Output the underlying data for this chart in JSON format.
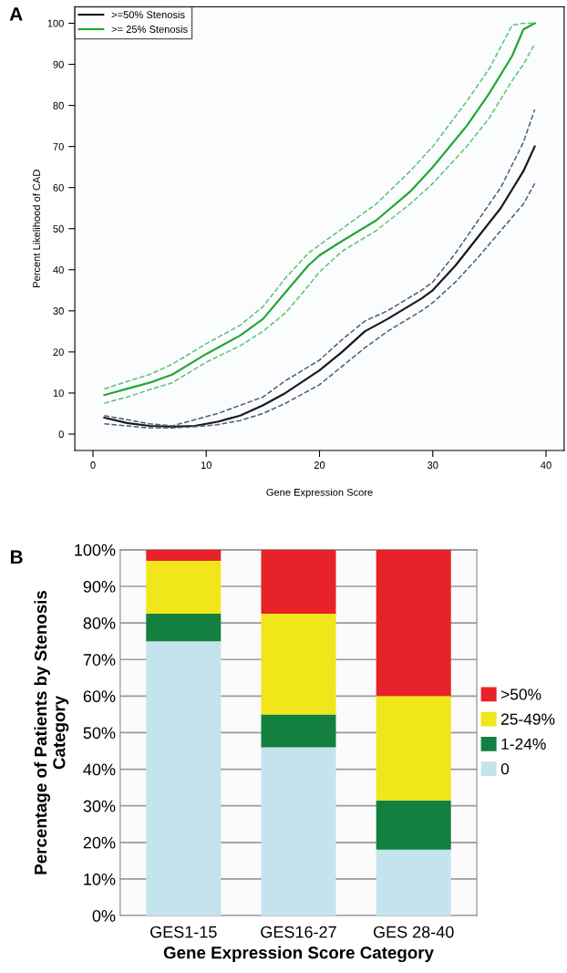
{
  "chart_data": [
    {
      "type": "line",
      "title": "A",
      "xlabel": "Gene Expression Score",
      "ylabel": "Percent Likelihood of CAD",
      "xlim": [
        -1.6,
        41.6
      ],
      "ylim": [
        -4,
        104
      ],
      "xticks": [
        0,
        10,
        20,
        30,
        40
      ],
      "yticks": [
        0,
        10,
        20,
        30,
        40,
        50,
        60,
        70,
        80,
        90,
        100
      ],
      "grid": false,
      "legend": "top left",
      "line_style": "solid",
      "marker": "none",
      "series": [
        {
          "name": ">=50% Stenosis",
          "color": "#1a1a1a",
          "x": [
            1,
            3,
            5,
            7,
            9,
            11,
            13,
            15,
            17,
            20,
            22,
            24,
            26,
            29,
            30,
            32,
            34,
            36,
            38,
            39
          ],
          "values": [
            4,
            2.7,
            2,
            1.8,
            2,
            3,
            4.5,
            7,
            10,
            15.5,
            20,
            25,
            28,
            33,
            35,
            41,
            48,
            55,
            64,
            70
          ]
        },
        {
          "name": ">= 25% Stenosis",
          "color": "#22a836",
          "x": [
            1,
            3,
            5,
            7,
            10,
            13,
            15,
            17,
            19,
            20,
            22,
            25,
            28,
            30,
            33,
            35,
            37,
            38,
            39
          ],
          "values": [
            9.5,
            11,
            12.5,
            14.5,
            19.5,
            24,
            28,
            34.5,
            41,
            43.5,
            47,
            52,
            59,
            65,
            75,
            83,
            92,
            98.5,
            100
          ]
        },
        {
          "color": "#4f5f70",
          "line_style": "dashed",
          "x": [
            1,
            3,
            5,
            7,
            9,
            11,
            13,
            15,
            17,
            20,
            22,
            24,
            26,
            29,
            30,
            32,
            34,
            36,
            38,
            39
          ],
          "values": [
            2.5,
            2,
            1.5,
            1.5,
            1.8,
            2.3,
            3.3,
            5,
            7.5,
            12,
            16.5,
            21,
            25,
            30,
            32,
            37,
            43,
            49.5,
            56,
            61
          ]
        },
        {
          "color": "#4f5f70",
          "line_style": "dashed",
          "x": [
            1,
            3,
            5,
            7,
            9,
            11,
            13,
            15,
            17,
            20,
            22,
            24,
            26,
            29,
            30,
            32,
            34,
            36,
            38,
            39
          ],
          "values": [
            4.5,
            3.5,
            2.5,
            2,
            3.5,
            5,
            7,
            9,
            13,
            18,
            23,
            27.5,
            30,
            35,
            37,
            44,
            52,
            60,
            71,
            79
          ]
        },
        {
          "color": "#5cc46e",
          "line_style": "dashed",
          "x": [
            1,
            3,
            5,
            7,
            10,
            13,
            15,
            17,
            19,
            20,
            22,
            25,
            28,
            30,
            33,
            35,
            37,
            38,
            39
          ],
          "values": [
            7.5,
            9,
            10.8,
            12.5,
            17.5,
            21.5,
            25,
            29.5,
            36,
            39.5,
            44.5,
            49.5,
            56,
            61,
            70,
            77,
            86,
            90,
            95
          ]
        },
        {
          "color": "#5cc46e",
          "line_style": "dashed",
          "x": [
            1,
            3,
            5,
            7,
            10,
            13,
            15,
            17,
            19,
            20,
            22,
            25,
            28,
            30,
            33,
            35,
            37,
            38,
            39
          ],
          "values": [
            11,
            12.8,
            14.5,
            17,
            22,
            26.5,
            31,
            38,
            44,
            46,
            50,
            56,
            64,
            70,
            81,
            89,
            99.5,
            100,
            100
          ]
        }
      ]
    },
    {
      "type": "bar",
      "title": "B",
      "xlabel": "Gene Expression Score Category",
      "ylabel": "Percentage of Patients by Stenosis\nCategory",
      "categories": [
        "GES1-15",
        "GES16-27",
        "GES 28-40"
      ],
      "stacked": true,
      "ylim": [
        0,
        100
      ],
      "yticks": [
        {
          "value": 0,
          "label": "0%"
        },
        {
          "value": 10,
          "label": "10%"
        },
        {
          "value": 20,
          "label": "20%"
        },
        {
          "value": 30,
          "label": "30%"
        },
        {
          "value": 40,
          "label": "40%"
        },
        {
          "value": 50,
          "label": "50%"
        },
        {
          "value": 60,
          "label": "60%"
        },
        {
          "value": 70,
          "label": "70%"
        },
        {
          "value": 80,
          "label": "80%"
        },
        {
          "value": 90,
          "label": "90%"
        },
        {
          "value": 100,
          "label": "100%"
        }
      ],
      "grid": "y",
      "legend": "right",
      "series": [
        {
          "name": "0",
          "color": "#c3e4ec",
          "values": [
            75,
            46,
            18
          ]
        },
        {
          "name": "1-24%",
          "color": "#138040",
          "values": [
            7.5,
            9,
            13.5
          ]
        },
        {
          "name": "25-49%",
          "color": "#f0e619",
          "values": [
            14.5,
            27.5,
            28.5
          ]
        },
        {
          "name": ">50%",
          "color": "#e82229",
          "values": [
            3,
            17.5,
            40
          ]
        }
      ]
    }
  ]
}
